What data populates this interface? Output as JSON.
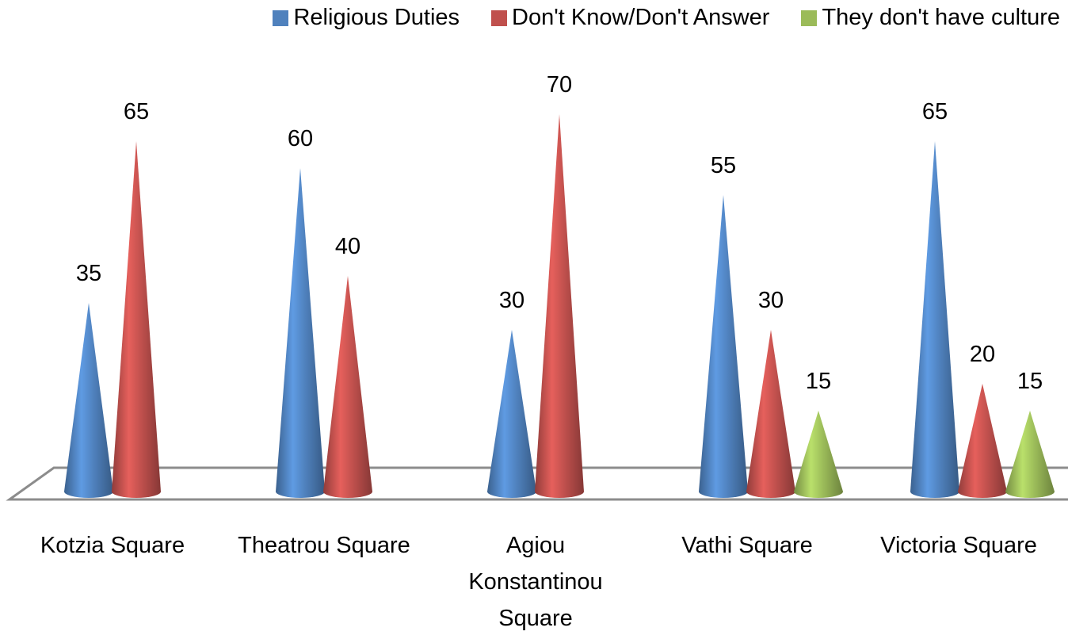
{
  "chart_data": {
    "type": "cone",
    "categories": [
      "Kotzia Square",
      "Theatrou Square",
      "Agiou Konstantinou Square",
      "Vathi Square",
      "Victoria Square"
    ],
    "series": [
      {
        "name": "Religious Duties",
        "color": "#4f81bd",
        "values": [
          35,
          60,
          30,
          55,
          65
        ]
      },
      {
        "name": "Don't Know/Don't Answer",
        "color": "#c0504d",
        "values": [
          65,
          40,
          70,
          30,
          20
        ]
      },
      {
        "name": "They don't have culture",
        "color": "#9bbb59",
        "values": [
          null,
          null,
          null,
          15,
          15
        ]
      }
    ],
    "legend": "top"
  }
}
